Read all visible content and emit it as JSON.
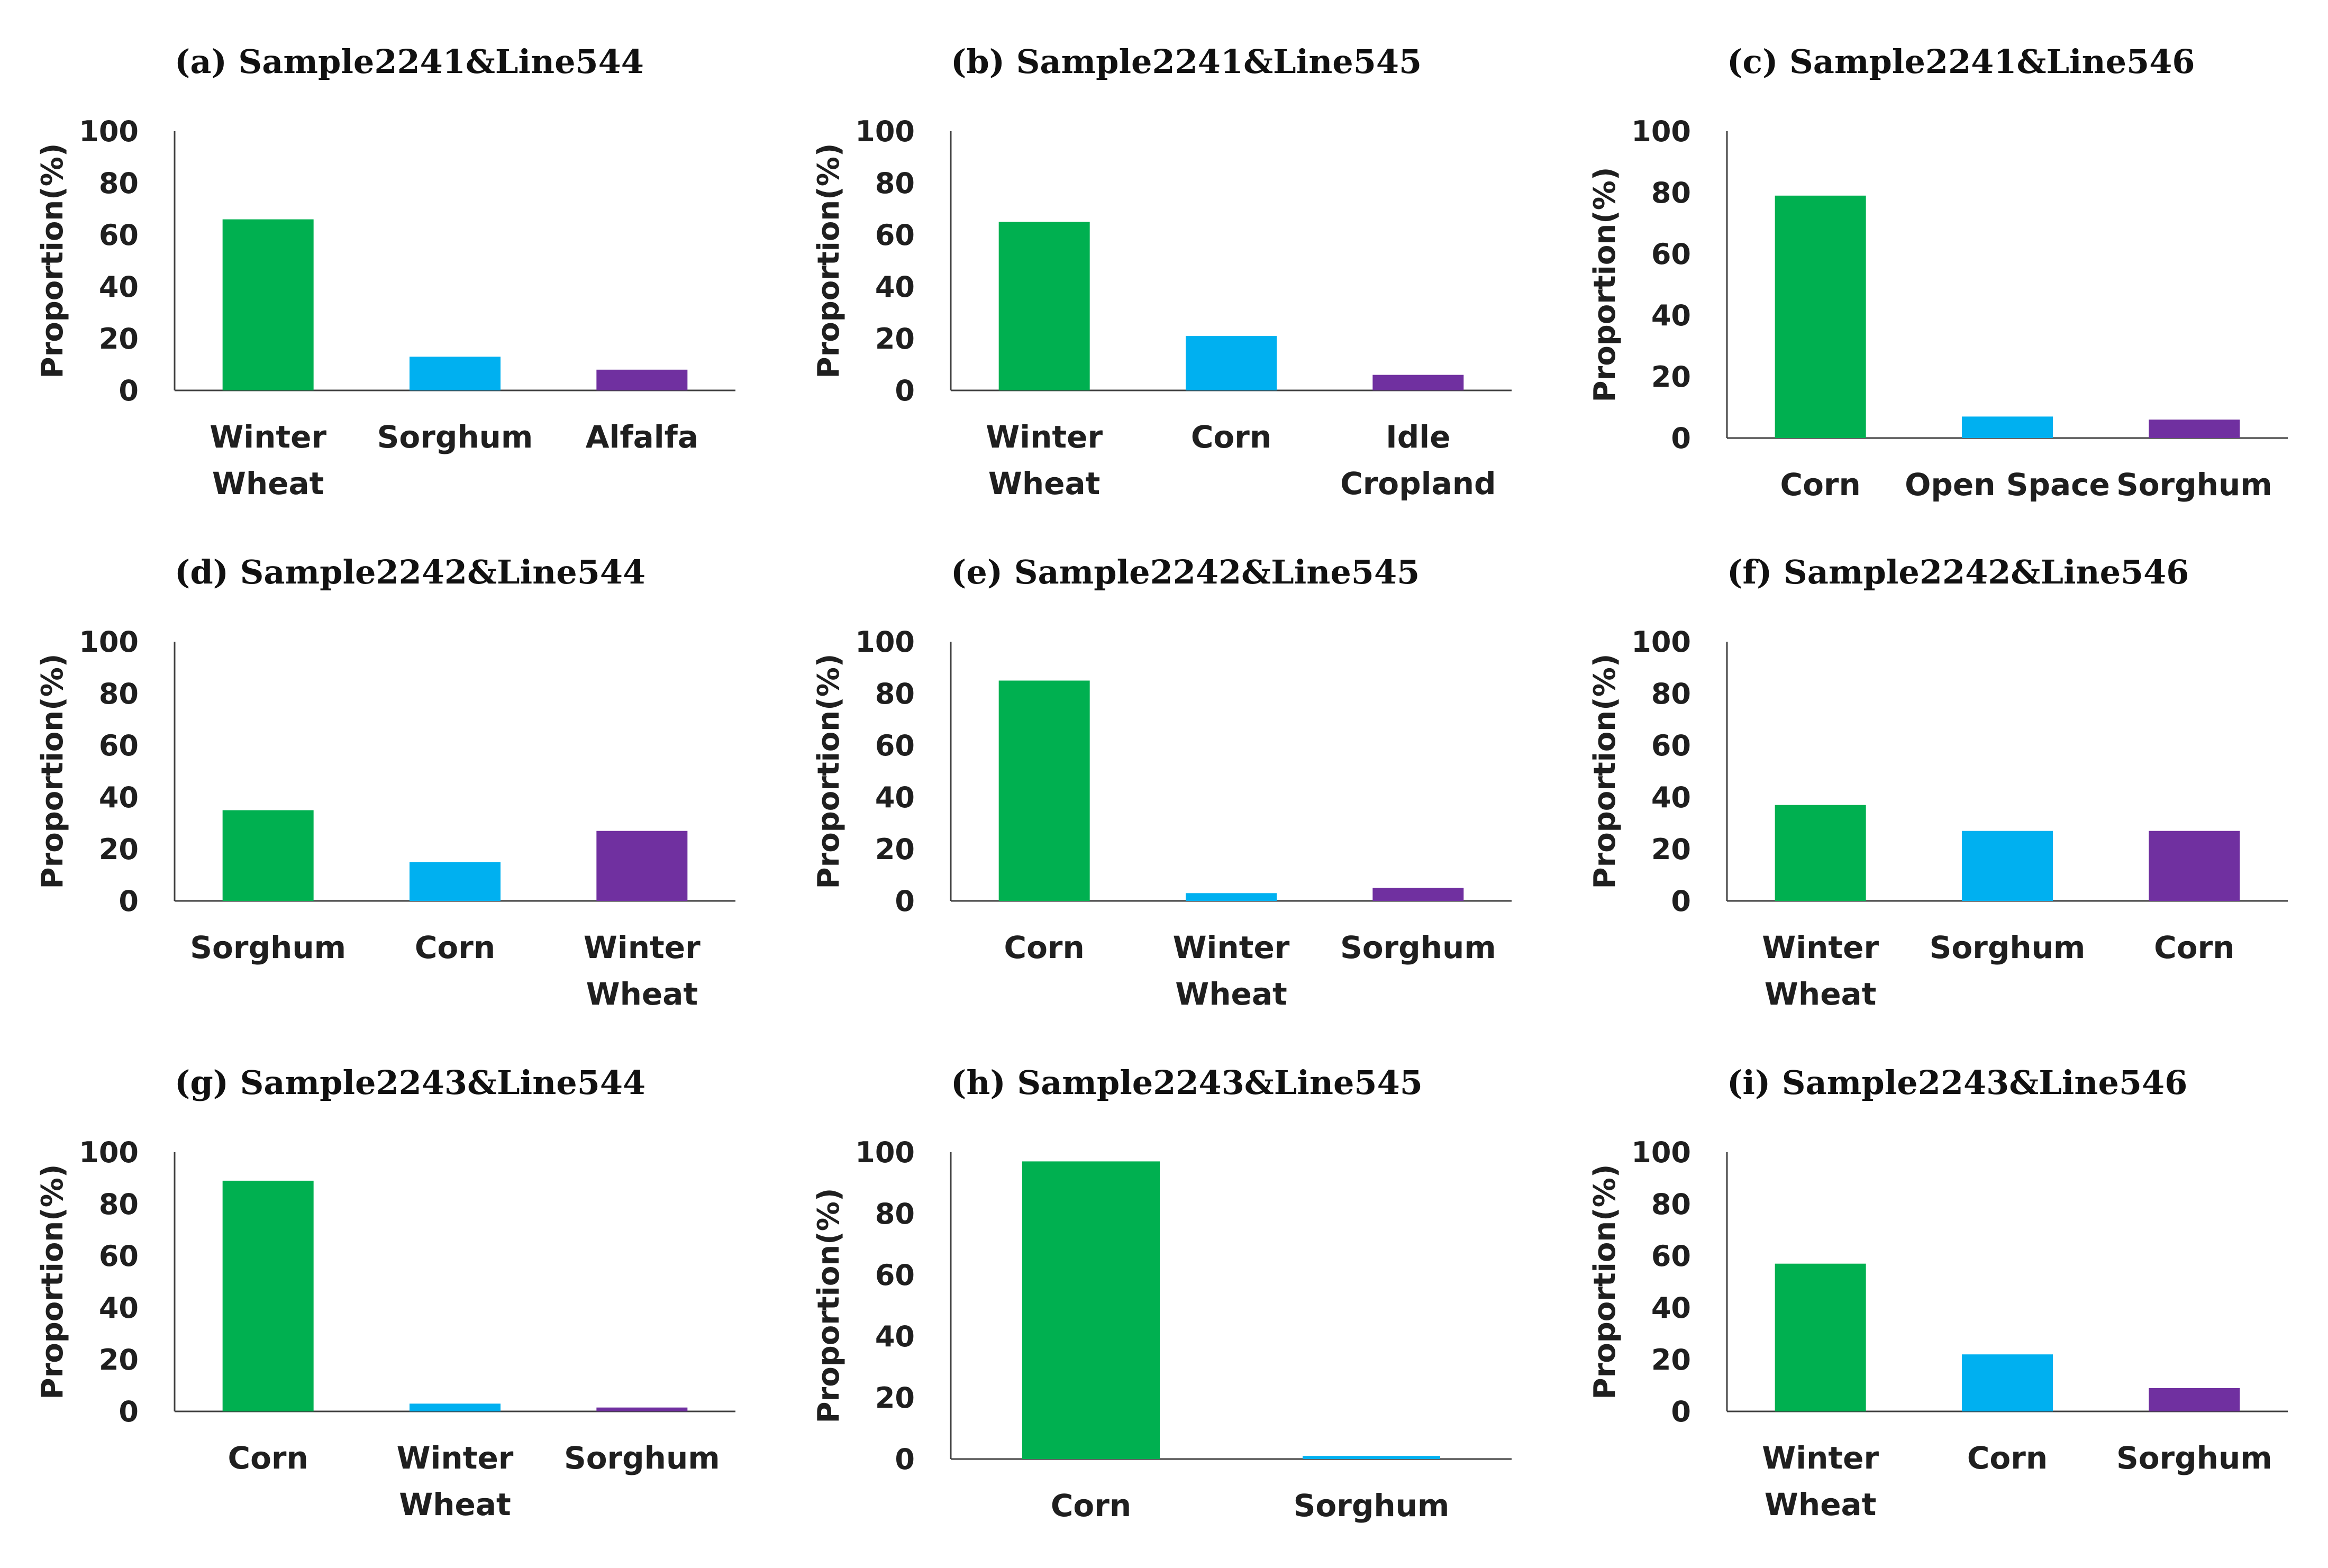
{
  "chart_data": [
    {
      "type": "bar",
      "panel": "(a)",
      "title": "Sample2241&Line544",
      "ylabel": "Proportion(%)",
      "ylim": [
        0,
        100
      ],
      "yticks": [
        0,
        20,
        40,
        60,
        80,
        100
      ],
      "categories": [
        [
          "Winter",
          "Wheat"
        ],
        [
          "Sorghum"
        ],
        [
          "Alfalfa"
        ]
      ],
      "values": [
        66,
        13,
        8
      ],
      "colors": [
        "#00B050",
        "#00B0F0",
        "#7030A0"
      ]
    },
    {
      "type": "bar",
      "panel": "(b)",
      "title": "Sample2241&Line545",
      "ylabel": "Proportion(%)",
      "ylim": [
        0,
        100
      ],
      "yticks": [
        0,
        20,
        40,
        60,
        80,
        100
      ],
      "categories": [
        [
          "Winter",
          "Wheat"
        ],
        [
          "Corn"
        ],
        [
          "Idle",
          "Cropland"
        ]
      ],
      "values": [
        65,
        21,
        6
      ],
      "colors": [
        "#00B050",
        "#00B0F0",
        "#7030A0"
      ]
    },
    {
      "type": "bar",
      "panel": "(c)",
      "title": "Sample2241&Line546",
      "ylabel": "Proportion(%)",
      "ylim": [
        0,
        100
      ],
      "yticks": [
        0,
        20,
        40,
        60,
        80,
        100
      ],
      "categories": [
        [
          "Corn"
        ],
        [
          "Open Space"
        ],
        [
          "Sorghum"
        ]
      ],
      "values": [
        79,
        7,
        6
      ],
      "colors": [
        "#00B050",
        "#00B0F0",
        "#7030A0"
      ]
    },
    {
      "type": "bar",
      "panel": "(d)",
      "title": "Sample2242&Line544",
      "ylabel": "Proportion(%)",
      "ylim": [
        0,
        100
      ],
      "yticks": [
        0,
        20,
        40,
        60,
        80,
        100
      ],
      "categories": [
        [
          "Sorghum"
        ],
        [
          "Corn"
        ],
        [
          "Winter",
          "Wheat"
        ]
      ],
      "values": [
        35,
        15,
        27
      ],
      "colors": [
        "#00B050",
        "#00B0F0",
        "#7030A0"
      ]
    },
    {
      "type": "bar",
      "panel": "(e)",
      "title": "Sample2242&Line545",
      "ylabel": "Proportion(%)",
      "ylim": [
        0,
        100
      ],
      "yticks": [
        0,
        20,
        40,
        60,
        80,
        100
      ],
      "categories": [
        [
          "Corn"
        ],
        [
          "Winter",
          "Wheat"
        ],
        [
          "Sorghum"
        ]
      ],
      "values": [
        85,
        3,
        5
      ],
      "colors": [
        "#00B050",
        "#00B0F0",
        "#7030A0"
      ]
    },
    {
      "type": "bar",
      "panel": "(f)",
      "title": "Sample2242&Line546",
      "ylabel": "Proportion(%)",
      "ylim": [
        0,
        100
      ],
      "yticks": [
        0,
        20,
        40,
        60,
        80,
        100
      ],
      "categories": [
        [
          "Winter",
          "Wheat"
        ],
        [
          "Sorghum"
        ],
        [
          "Corn"
        ]
      ],
      "values": [
        37,
        27,
        27
      ],
      "colors": [
        "#00B050",
        "#00B0F0",
        "#7030A0"
      ]
    },
    {
      "type": "bar",
      "panel": "(g)",
      "title": "Sample2243&Line544",
      "ylabel": "Proportion(%)",
      "ylim": [
        0,
        100
      ],
      "yticks": [
        0,
        20,
        40,
        60,
        80,
        100
      ],
      "categories": [
        [
          "Corn"
        ],
        [
          "Winter",
          "Wheat"
        ],
        [
          "Sorghum"
        ]
      ],
      "values": [
        89,
        3,
        1.5
      ],
      "colors": [
        "#00B050",
        "#00B0F0",
        "#7030A0"
      ]
    },
    {
      "type": "bar",
      "panel": "(h)",
      "title": "Sample2243&Line545",
      "ylabel": "Proportion(%)",
      "ylim": [
        0,
        100
      ],
      "yticks": [
        0,
        20,
        40,
        60,
        80,
        100
      ],
      "categories": [
        [
          "Corn"
        ],
        [
          "Sorghum"
        ]
      ],
      "values": [
        97,
        1
      ],
      "colors": [
        "#00B050",
        "#00B0F0"
      ]
    },
    {
      "type": "bar",
      "panel": "(i)",
      "title": "Sample2243&Line546",
      "ylabel": "Proportion(%)",
      "ylim": [
        0,
        100
      ],
      "yticks": [
        0,
        20,
        40,
        60,
        80,
        100
      ],
      "categories": [
        [
          "Winter",
          "Wheat"
        ],
        [
          "Corn"
        ],
        [
          "Sorghum"
        ]
      ],
      "values": [
        57,
        22,
        9
      ],
      "colors": [
        "#00B050",
        "#00B0F0",
        "#7030A0"
      ]
    }
  ]
}
